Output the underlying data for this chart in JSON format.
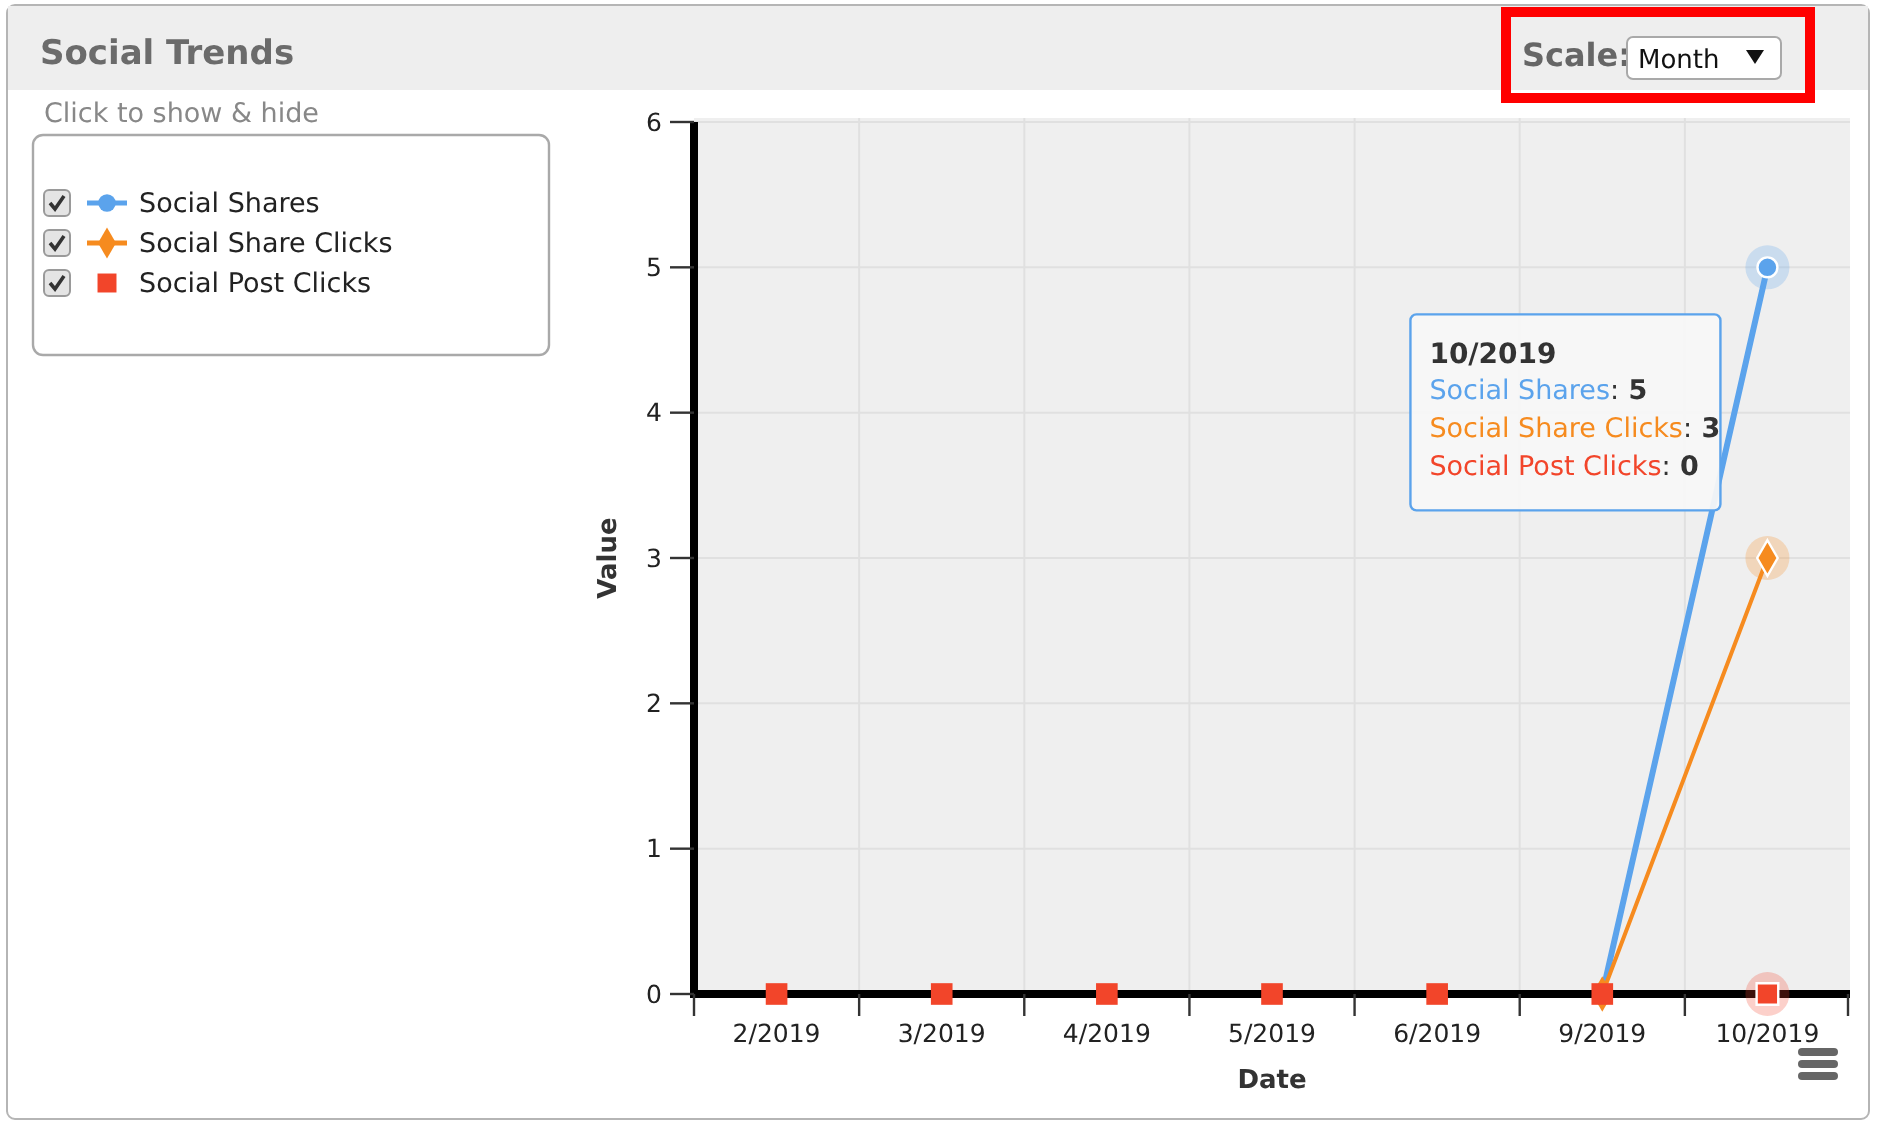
{
  "chart_data": {
    "type": "line",
    "title": "Social Trends",
    "xlabel": "Date",
    "ylabel": "Value",
    "categories": [
      "2/2019",
      "3/2019",
      "4/2019",
      "5/2019",
      "6/2019",
      "9/2019",
      "10/2019"
    ],
    "series": [
      {
        "name": "Social Shares",
        "color": "#5ba3ec",
        "marker": "circle",
        "values": [
          null,
          null,
          null,
          null,
          null,
          0,
          5
        ]
      },
      {
        "name": "Social Share Clicks",
        "color": "#f68b1f",
        "marker": "diamond",
        "values": [
          null,
          null,
          null,
          null,
          null,
          0,
          3
        ]
      },
      {
        "name": "Social Post Clicks",
        "color": "#f2452a",
        "marker": "square",
        "type": "scatter",
        "values": [
          0,
          0,
          0,
          0,
          0,
          0,
          0
        ]
      }
    ],
    "ylim": [
      0,
      6
    ],
    "yticks": [
      0,
      1,
      2,
      3,
      4,
      5,
      6
    ],
    "grid": true,
    "legend": "left",
    "annotations": [
      "Click to show & hide",
      "Scale:",
      "Month",
      "10/2019",
      "Social Shares: 5",
      "Social Share Clicks: 3",
      "Social Post Clicks: 0"
    ]
  }
}
